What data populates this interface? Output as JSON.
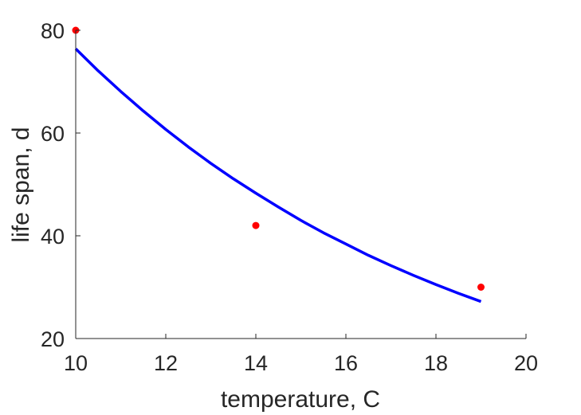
{
  "chart_data": {
    "type": "line",
    "title": "",
    "xlabel": "temperature, C",
    "ylabel": "life span, d",
    "xlim": [
      10,
      20
    ],
    "ylim": [
      20,
      80
    ],
    "xticks": [
      10,
      12,
      14,
      16,
      18,
      20
    ],
    "yticks": [
      20,
      40,
      60,
      80
    ],
    "grid": false,
    "series": [
      {
        "kind": "scatter",
        "color": "#ff0000",
        "x": [
          10,
          14,
          19
        ],
        "y": [
          80,
          42,
          30
        ]
      },
      {
        "kind": "line",
        "color": "#0000ff",
        "x": [
          10,
          10.5,
          11,
          11.5,
          12,
          12.5,
          13,
          13.5,
          14,
          14.5,
          15,
          15.5,
          16,
          16.5,
          17,
          17.5,
          18,
          18.5,
          19
        ],
        "y": [
          76.4,
          72.1,
          68.1,
          64.3,
          60.7,
          57.3,
          54.1,
          51.1,
          48.3,
          45.6,
          43.0,
          40.6,
          38.4,
          36.2,
          34.2,
          32.3,
          30.5,
          28.8,
          27.2
        ]
      }
    ]
  }
}
